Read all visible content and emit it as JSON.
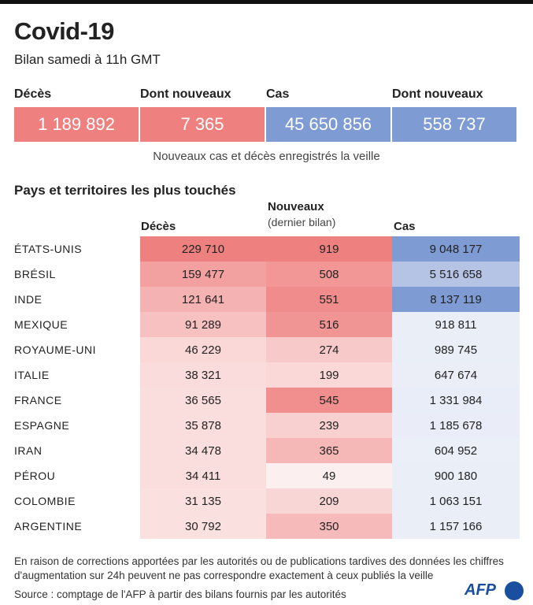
{
  "title": "Covid-19",
  "subtitle": "Bilan samedi à 11h GMT",
  "key_figures": [
    {
      "label": "Décès",
      "value": "1 189 892",
      "color": "#ef8080"
    },
    {
      "label": "Dont nouveaux",
      "value": "7 365",
      "color": "#ef8080"
    },
    {
      "label": "Cas",
      "value": "45 650 856",
      "color": "#7f9bd3"
    },
    {
      "label": "Dont nouveaux",
      "value": "558 737",
      "color": "#7f9bd3"
    }
  ],
  "key_note": "Nouveaux cas et décès enregistrés la veille",
  "section_title": "Pays et territoires les plus touchés",
  "chart_data": {
    "type": "table",
    "columns": [
      "Décès",
      "Nouveaux",
      "(dernier bilan)",
      "Cas"
    ],
    "rows": [
      {
        "country": "ÉTATS-UNIS",
        "deaths": 229710,
        "new": 919,
        "cases": 9048177,
        "deaths_t": "229 710",
        "new_t": "919",
        "cases_t": "9 048 177"
      },
      {
        "country": "BRÉSIL",
        "deaths": 159477,
        "new": 508,
        "cases": 5516658,
        "deaths_t": "159 477",
        "new_t": "508",
        "cases_t": "5 516 658"
      },
      {
        "country": "INDE",
        "deaths": 121641,
        "new": 551,
        "cases": 8137119,
        "deaths_t": "121 641",
        "new_t": "551",
        "cases_t": "8 137 119"
      },
      {
        "country": "MEXIQUE",
        "deaths": 91289,
        "new": 516,
        "cases": 918811,
        "deaths_t": "91 289",
        "new_t": "516",
        "cases_t": "918 811"
      },
      {
        "country": "ROYAUME-UNI",
        "deaths": 46229,
        "new": 274,
        "cases": 989745,
        "deaths_t": "46 229",
        "new_t": "274",
        "cases_t": "989 745"
      },
      {
        "country": "ITALIE",
        "deaths": 38321,
        "new": 199,
        "cases": 647674,
        "deaths_t": "38 321",
        "new_t": "199",
        "cases_t": "647 674"
      },
      {
        "country": "FRANCE",
        "deaths": 36565,
        "new": 545,
        "cases": 1331984,
        "deaths_t": "36 565",
        "new_t": "545",
        "cases_t": "1 331 984"
      },
      {
        "country": "ESPAGNE",
        "deaths": 35878,
        "new": 239,
        "cases": 1185678,
        "deaths_t": "35 878",
        "new_t": "239",
        "cases_t": "1 185 678"
      },
      {
        "country": "IRAN",
        "deaths": 34478,
        "new": 365,
        "cases": 604952,
        "deaths_t": "34 478",
        "new_t": "365",
        "cases_t": "604 952"
      },
      {
        "country": "PÉROU",
        "deaths": 34411,
        "new": 49,
        "cases": 900180,
        "deaths_t": "34 411",
        "new_t": "49",
        "cases_t": "900 180"
      },
      {
        "country": "COLOMBIE",
        "deaths": 31135,
        "new": 209,
        "cases": 1063151,
        "deaths_t": "31 135",
        "new_t": "209",
        "cases_t": "1 063 151"
      },
      {
        "country": "ARGENTINE",
        "deaths": 30792,
        "new": 350,
        "cases": 1157166,
        "deaths_t": "30 792",
        "new_t": "350",
        "cases_t": "1 157 166"
      }
    ]
  },
  "footnote1": "En raison de corrections apportées par les autorités ou de publications tardives des données  les chiffres",
  "footnote2": "d'augmentation sur 24h peuvent ne pas correspondre exactement à ceux publiés la veille",
  "source": "Source : comptage de l'AFP à partir des bilans fournis par les autorités",
  "logo": "AFP"
}
